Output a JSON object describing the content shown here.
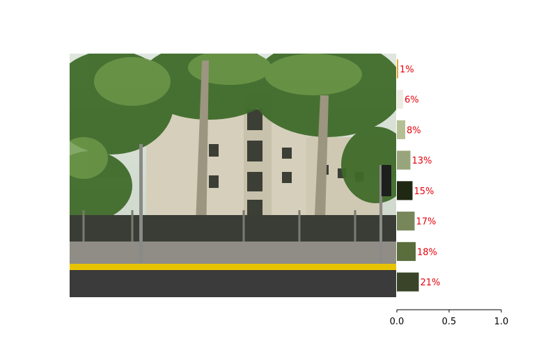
{
  "chart_data": {
    "type": "bar",
    "orientation": "horizontal",
    "categories": [
      "",
      "",
      "",
      "",
      "",
      "",
      "",
      ""
    ],
    "values": [
      0.01,
      0.06,
      0.08,
      0.13,
      0.15,
      0.17,
      0.18,
      0.21
    ],
    "labels": [
      "1%",
      "6%",
      "8%",
      "13%",
      "15%",
      "17%",
      "18%",
      "21%"
    ],
    "colors": [
      "#e6a530",
      "#ecece2",
      "#b5bf94",
      "#98a57c",
      "#1f2812",
      "#77875a",
      "#5a6d3c",
      "#3a4428"
    ],
    "xlim": [
      0,
      1.0
    ],
    "xticks": [
      "0.0",
      "0.5",
      "1.0"
    ],
    "label_color": "#e8000b",
    "grid": false,
    "title": "",
    "xlabel": "",
    "ylabel": ""
  },
  "image": {
    "subject": "street-corner-residential-building-with-plane-trees"
  }
}
